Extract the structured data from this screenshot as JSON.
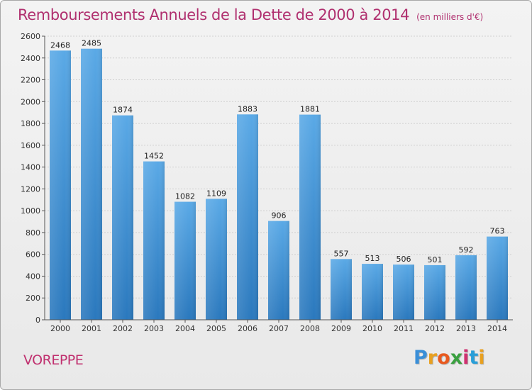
{
  "header": {
    "title": "Remboursements Annuels de la Dette de 2000 à 2014",
    "subtitle": "(en milliers d'€)"
  },
  "footer": {
    "city": "VOREPPE",
    "logo_letters": [
      "P",
      "r",
      "o",
      "x",
      "i",
      "t",
      "i"
    ],
    "logo_colors": [
      "#3a8fd8",
      "#e8a020",
      "#e85a20",
      "#3aa040",
      "#d03070",
      "#2a9fd8",
      "#e8a020"
    ]
  },
  "colors": {
    "bar_top": "#5aa9e6",
    "bar_bottom": "#2a78bd",
    "grid": "#d0d0d0",
    "axis": "#555555",
    "title": "#b0306f"
  },
  "chart_data": {
    "type": "bar",
    "categories": [
      "2000",
      "2001",
      "2002",
      "2003",
      "2004",
      "2005",
      "2006",
      "2007",
      "2008",
      "2009",
      "2010",
      "2011",
      "2012",
      "2013",
      "2014"
    ],
    "values": [
      2468,
      2485,
      1874,
      1452,
      1082,
      1109,
      1883,
      906,
      1881,
      557,
      513,
      506,
      501,
      592,
      763
    ],
    "ylim": [
      0,
      2600
    ],
    "yticks": [
      0,
      200,
      400,
      600,
      800,
      1000,
      1200,
      1400,
      1600,
      1800,
      2000,
      2200,
      2400,
      2600
    ],
    "grid": true,
    "xlabel": "",
    "ylabel": ""
  }
}
